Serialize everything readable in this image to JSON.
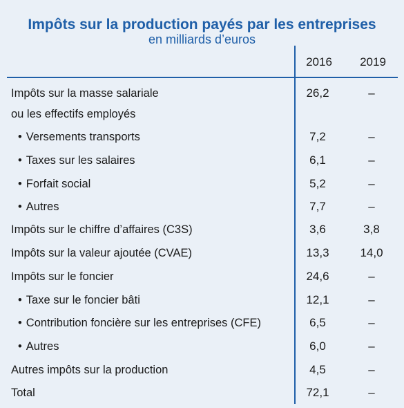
{
  "title": "Impôts sur la production payés par les entreprises",
  "subtitle": "en milliards d’euros",
  "columns": [
    "2016",
    "2019"
  ],
  "bullet": "•",
  "rows": [
    {
      "label": "Impôts sur la masse salariale",
      "v2016": "26,2",
      "v2019": "–"
    },
    {
      "label": "ou les effectifs employés",
      "v2016": "",
      "v2019": ""
    },
    {
      "label": "Versements transports",
      "v2016": "7,2",
      "v2019": "–"
    },
    {
      "label": "Taxes sur les salaires",
      "v2016": "6,1",
      "v2019": "–"
    },
    {
      "label": "Forfait social",
      "v2016": "5,2",
      "v2019": "–"
    },
    {
      "label": "Autres",
      "v2016": "7,7",
      "v2019": "–"
    },
    {
      "label": "Impôts sur le chiffre d’affaires (C3S)",
      "v2016": "3,6",
      "v2019": "3,8"
    },
    {
      "label": "Impôts sur la valeur ajoutée (CVAE)",
      "v2016": "13,3",
      "v2019": "14,0"
    },
    {
      "label": "Impôts sur le foncier",
      "v2016": "24,6",
      "v2019": "–"
    },
    {
      "label": "Taxe sur le foncier bâti",
      "v2016": "12,1",
      "v2019": "–"
    },
    {
      "label": "Contribution foncière sur les entreprises (CFE)",
      "v2016": "6,5",
      "v2019": "–"
    },
    {
      "label": "Autres",
      "v2016": "6,0",
      "v2019": "–"
    },
    {
      "label": "Autres impôts sur la production",
      "v2016": "4,5",
      "v2019": "–"
    },
    {
      "label": "Total",
      "v2016": "72,1",
      "v2019": "–"
    }
  ]
}
